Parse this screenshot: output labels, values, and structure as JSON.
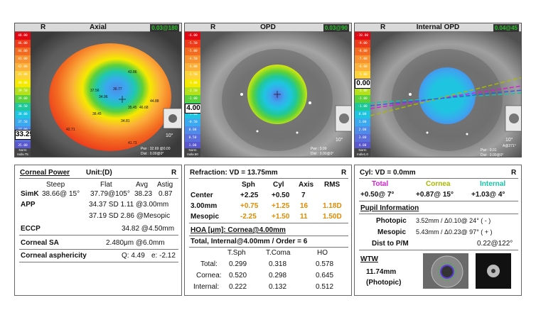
{
  "scale": {
    "values": [
      "48.00",
      "46.00",
      "44.00",
      "43.00",
      "42.00",
      "41.00",
      "40.00",
      "39.50",
      "39.00",
      "38.50",
      "38.00",
      "37.50",
      "37.00",
      "36.00",
      "35.00",
      "34.00"
    ],
    "colors": [
      "#e30613",
      "#ec3a1a",
      "#f36b21",
      "#f79331",
      "#fbb13a",
      "#fed23b",
      "#f5e900",
      "#b5e11a",
      "#5cd03a",
      "#1fc89b",
      "#1fc5e0",
      "#3aa9ef",
      "#4f8be9",
      "#5b6fdc",
      "#5a58cf",
      "#4b43b8"
    ]
  },
  "axial": {
    "title": "Axial",
    "eye": "R",
    "grade": "0.03@180",
    "scale_selected": "33.25",
    "scale_footer": "Norm Indiv.75",
    "labels": [
      "43.86",
      "37.56",
      "36.77",
      "34.96",
      "44.88",
      "46.68",
      "35.45",
      "38.45",
      "34.81",
      "42.71",
      "41.73"
    ],
    "angle": "10°",
    "pwr": "Pwr : 32.69 @0.00",
    "dist": "Dist : 0.00@0°"
  },
  "opd": {
    "title": "OPD",
    "eye": "R",
    "grade": "0.03@90",
    "scale_selected": "4.00",
    "scale_footer": "Norm Indiv.50",
    "scale_values": [
      "-6.00",
      "-5.50",
      "-5.00",
      "-4.50",
      "-4.00",
      "-3.50",
      "-3.00",
      "-2.50",
      "-2.00",
      "-1.50",
      "-1.00",
      "-0.50",
      "0.00",
      "0.50",
      "1.00",
      "1.50"
    ],
    "angle": "10°",
    "pwr": "Pwr : 3.99",
    "dist": "Dist : 0.00@0°"
  },
  "internal": {
    "title": "Internal OPD",
    "eye": "R",
    "grade": "0.04@45",
    "scale_selected": "0.00",
    "scale_footer": "Norm Indiv1.0",
    "scale_values": [
      "-10.00",
      "-9.00",
      "-8.00",
      "-7.00",
      "-6.00",
      "-5.00",
      "-4.00",
      "-3.00",
      "-2.00",
      "-1.00",
      "0.00",
      "1.00",
      "2.00",
      "3.00",
      "4.00",
      "5.00"
    ],
    "angle": "10°",
    "angle2": "A@271°",
    "pwr": "Pwr : 0.01",
    "dist": "Dist : 0.00@0°"
  },
  "corneal": {
    "title": "Corneal Power",
    "unit": "Unit:(D)",
    "eye": "R",
    "headers": [
      "Steep",
      "Flat",
      "Avg",
      "Astig"
    ],
    "simk_label": "SimK",
    "simk_steep": "38.66@ 15°",
    "simk_flat": "37.79@105°",
    "simk_avg": "38.23",
    "simk_astig": "0.87",
    "app_label": "APP",
    "app1": "34.37 SD 1.11 @3.00mm",
    "app2": "37.19 SD 2.86 @Mesopic",
    "eccp_label": "ECCP",
    "eccp_value": "34.82 @4.50mm",
    "sa_label": "Corneal SA",
    "sa_value": "2.480μm @6.0mm",
    "asph_label": "Corneal asphericity",
    "asph_q": "Q: 4.49",
    "asph_e": "e: -2.12"
  },
  "refraction": {
    "title": "Refraction: VD = 13.75mm",
    "eye": "R",
    "headers": [
      "Sph",
      "Cyl",
      "Axis",
      "RMS"
    ],
    "rows": [
      {
        "label": "Center",
        "sph": "+2.25",
        "cyl": "+0.50",
        "axis": "7",
        "rms": ""
      },
      {
        "label": "3.00mm",
        "sph": "+0.75",
        "cyl": "+1.25",
        "axis": "16",
        "rms": "1.18D"
      },
      {
        "label": "Mesopic",
        "sph": "-2.25",
        "cyl": "+1.50",
        "axis": "11",
        "rms": "1.50D"
      }
    ],
    "hoa_title": "HOA [μm]: Cornea@4.00mm",
    "total_line": "Total, Internal@4.00mm / Order = 6",
    "hoa_headers": [
      "T.Sph",
      "T.Coma",
      "HO"
    ],
    "hoa_rows": [
      {
        "label": "Total:",
        "tsph": "0.299",
        "tcoma": "0.318",
        "ho": "0.578"
      },
      {
        "label": "Cornea:",
        "tsph": "0.520",
        "tcoma": "0.298",
        "ho": "0.645"
      },
      {
        "label": "Internal:",
        "tsph": "0.222",
        "tcoma": "0.132",
        "ho": "0.512"
      }
    ]
  },
  "cyl": {
    "title": "Cyl: VD = 0.0mm",
    "eye": "R",
    "headers": [
      "Total",
      "Cornea",
      "Internal"
    ],
    "header_colors": [
      "#d61fd6",
      "#a8b800",
      "#17c3a5"
    ],
    "values": [
      "+0.50@ 7°",
      "+0.87@ 15°",
      "+1.03@ 4°"
    ],
    "pupil_title": "Pupil Information",
    "photopic_label": "Photopic",
    "photopic_value": "3.52mm / Δ0.10@ 24° ( - )",
    "mesopic_label": "Mesopic",
    "mesopic_value": "5.43mm / Δ0.23@ 97° ( + )",
    "dist_label": "Dist to P/M",
    "dist_value": "0.22@122°",
    "wtw_title": "WTW",
    "wtw_value": "11.74mm",
    "wtw_sub": "(Photopic)"
  }
}
